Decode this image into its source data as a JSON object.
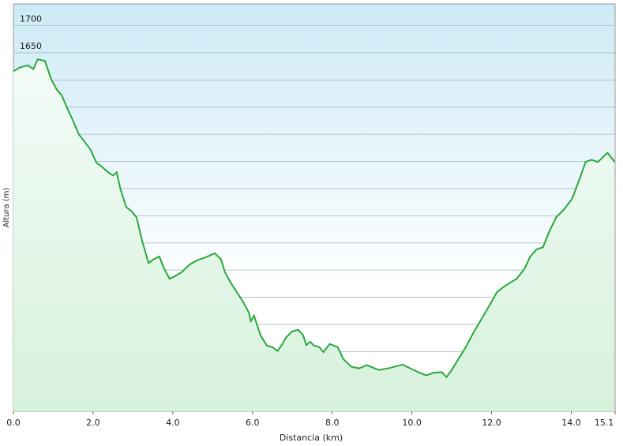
{
  "chart_data": {
    "type": "area",
    "xlabel": "Distancia  (km)",
    "ylabel": "Altura (m)",
    "x": [
      0,
      0.16,
      0.36,
      0.5,
      0.61,
      0.79,
      0.95,
      1.09,
      1.21,
      1.35,
      1.49,
      1.64,
      1.8,
      1.94,
      2.08,
      2.24,
      2.38,
      2.5,
      2.59,
      2.69,
      2.83,
      2.97,
      3.09,
      3.23,
      3.39,
      3.52,
      3.66,
      3.78,
      3.92,
      4.06,
      4.22,
      4.42,
      4.61,
      4.81,
      5.05,
      5.21,
      5.31,
      5.45,
      5.6,
      5.76,
      5.9,
      5.96,
      6.04,
      6.2,
      6.36,
      6.5,
      6.63,
      6.75,
      6.83,
      6.99,
      7.15,
      7.27,
      7.35,
      7.45,
      7.54,
      7.68,
      7.78,
      7.94,
      8.14,
      8.28,
      8.48,
      8.67,
      8.87,
      9.17,
      9.47,
      9.76,
      9.96,
      10.16,
      10.36,
      10.55,
      10.75,
      10.87,
      10.99,
      11.15,
      11.35,
      11.54,
      11.74,
      11.94,
      12.14,
      12.34,
      12.63,
      12.83,
      12.97,
      13.13,
      13.29,
      13.43,
      13.62,
      13.82,
      14.02,
      14.22,
      14.36,
      14.51,
      14.67,
      14.81,
      14.91,
      15.09
    ],
    "series": [
      {
        "name": "Altura",
        "color": "#2aa83a",
        "values": [
          1616,
          1623,
          1627,
          1620,
          1638,
          1635,
          1601,
          1582,
          1572,
          1548,
          1526,
          1500,
          1485,
          1471,
          1448,
          1439,
          1430,
          1424,
          1430,
          1398,
          1366,
          1358,
          1347,
          1304,
          1263,
          1270,
          1275,
          1253,
          1234,
          1239,
          1246,
          1260,
          1268,
          1273,
          1281,
          1270,
          1246,
          1227,
          1210,
          1192,
          1173,
          1156,
          1166,
          1130,
          1111,
          1108,
          1101,
          1114,
          1125,
          1137,
          1140,
          1130,
          1112,
          1118,
          1111,
          1108,
          1099,
          1114,
          1108,
          1086,
          1072,
          1069,
          1075,
          1066,
          1070,
          1076,
          1069,
          1062,
          1056,
          1061,
          1062,
          1053,
          1065,
          1084,
          1108,
          1134,
          1159,
          1184,
          1210,
          1221,
          1234,
          1253,
          1275,
          1288,
          1292,
          1318,
          1347,
          1362,
          1381,
          1420,
          1449,
          1453,
          1449,
          1459,
          1466,
          1449
        ]
      }
    ],
    "xlim": [
      0,
      15.1
    ],
    "xticks": [
      {
        "value": 0,
        "label": "0.0"
      },
      {
        "value": 2,
        "label": "2.0"
      },
      {
        "value": 4,
        "label": "4.0"
      },
      {
        "value": 6,
        "label": "6.0"
      },
      {
        "value": 8,
        "label": "8.0"
      },
      {
        "value": 10,
        "label": "10.0"
      },
      {
        "value": 12,
        "label": "12.0"
      },
      {
        "value": 14,
        "label": "14.0"
      },
      15.1
    ],
    "ylim": [
      990,
      1740
    ],
    "yticks": [
      1050,
      1100,
      1150,
      1200,
      1250,
      1300,
      1350,
      1400,
      1450,
      1500,
      1550,
      1600,
      1650,
      1700
    ],
    "grid": true
  }
}
